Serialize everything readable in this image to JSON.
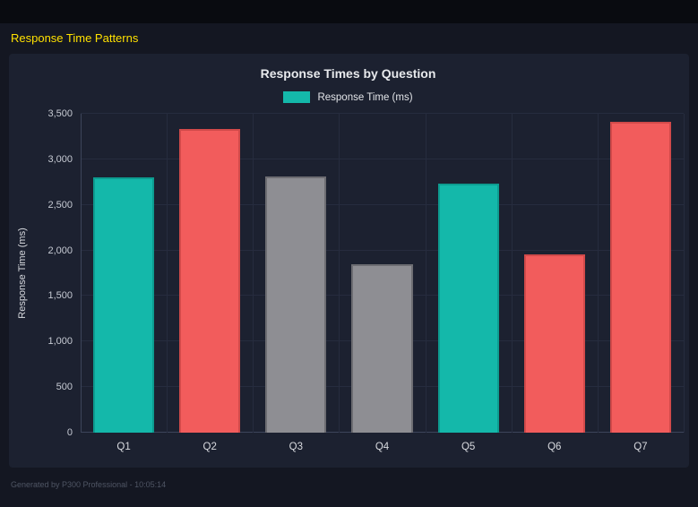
{
  "page": {
    "header_title": "Response Time Patterns",
    "footer": "Generated by P300 Professional - 10:05:14"
  },
  "colors": {
    "background": "#141722",
    "panel": "#1c2130",
    "accent_yellow": "#ffe100",
    "teal": "#14b8aa",
    "red": "#f25c5c",
    "gray": "#8e8e93"
  },
  "chart_data": {
    "type": "bar",
    "title": "Response Times by Question",
    "legend": [
      {
        "label": "Response Time (ms)",
        "color": "#14b8aa"
      }
    ],
    "legend_position": "top",
    "categories": [
      "Q1",
      "Q2",
      "Q3",
      "Q4",
      "Q5",
      "Q6",
      "Q7"
    ],
    "series": [
      {
        "name": "Response Time (ms)",
        "values": [
          2800,
          3330,
          2810,
          1845,
          2730,
          1960,
          3410
        ]
      }
    ],
    "bar_colors": [
      "#14b8aa",
      "#f25c5c",
      "#8e8e93",
      "#8e8e93",
      "#14b8aa",
      "#f25c5c",
      "#f25c5c"
    ],
    "bar_border_colors": [
      "#0d9c90",
      "#d14a4a",
      "#6d6d72",
      "#6d6d72",
      "#0d9c90",
      "#d14a4a",
      "#d14a4a"
    ],
    "xlabel": "",
    "ylabel": "Response Time (ms)",
    "ylim": [
      0,
      3500
    ],
    "y_ticks": [
      0,
      500,
      1000,
      1500,
      2000,
      2500,
      3000,
      3500
    ],
    "y_tick_labels": [
      "0",
      "500",
      "1,000",
      "1,500",
      "2,000",
      "2,500",
      "3,000",
      "3,500"
    ],
    "grid": true
  }
}
